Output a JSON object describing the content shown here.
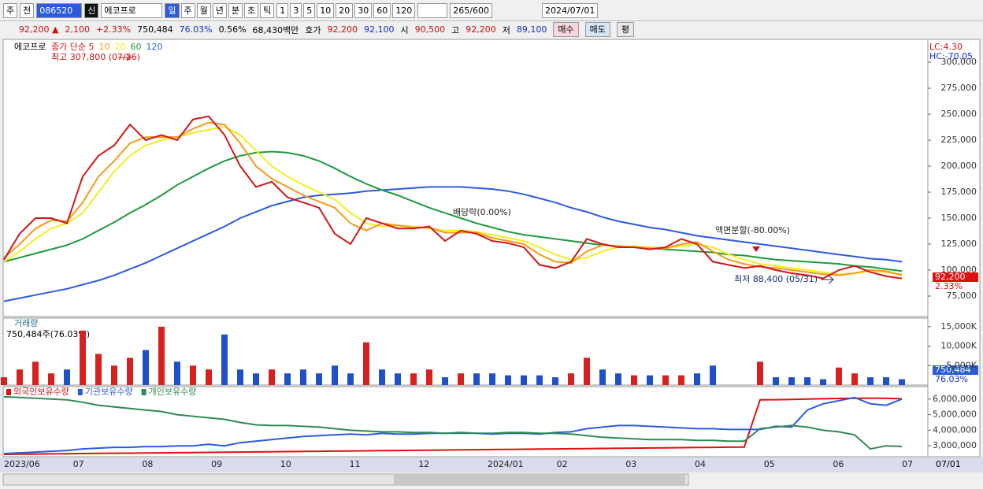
{
  "toolbar": {
    "market": "주",
    "prev": "전",
    "code": "086520",
    "credit": "신",
    "name": "에코프로",
    "periods": [
      "일",
      "주",
      "월",
      "년",
      "분",
      "초",
      "틱"
    ],
    "intervals": [
      "1",
      "3",
      "5",
      "10",
      "20",
      "30",
      "60",
      "120"
    ],
    "count": "265/600",
    "date": "2024/07/01"
  },
  "quote": {
    "price": "92,200 ▲",
    "change": "2,100",
    "rate": "+2.33%",
    "volume": "750,484",
    "vol_ratio": "76.03%",
    "turnover": "0.56%",
    "amount": "68,430백만",
    "ask_label": "호가",
    "ask": "92,200",
    "bid": "92,100",
    "open_label": "시",
    "open": "90,500",
    "high_label": "고",
    "high": "92,200",
    "low_label": "저",
    "low": "89,100",
    "buy": "매수",
    "sell": "매도",
    "avg": "평"
  },
  "chart_data": [
    {
      "type": "line",
      "title": "에코프로",
      "ylim": [
        55300,
        322000
      ],
      "yticks": [
        {
          "value": 75000,
          "label": "75,000"
        },
        {
          "value": 100000,
          "label": "100,000"
        },
        {
          "value": 125000,
          "label": "125,000"
        },
        {
          "value": 150000,
          "label": "150,000"
        },
        {
          "value": 175000,
          "label": "175,000"
        },
        {
          "value": 200000,
          "label": "200,000"
        },
        {
          "value": 225000,
          "label": "225,000"
        },
        {
          "value": 250000,
          "label": "250,000"
        },
        {
          "value": 275000,
          "label": "275,000"
        },
        {
          "value": 300000,
          "label": "300,000"
        }
      ],
      "series": [
        {
          "name": "120",
          "color": "#2c5be0",
          "values": [
            70000,
            73000,
            76000,
            79000,
            82000,
            86000,
            90000,
            95000,
            101000,
            107000,
            114000,
            121000,
            128000,
            135000,
            142000,
            150000,
            156000,
            162000,
            166000,
            170000,
            172000,
            173000,
            174000,
            176000,
            177000,
            178000,
            179000,
            180000,
            180000,
            180000,
            179000,
            178000,
            176000,
            173000,
            169000,
            165000,
            160000,
            156000,
            151000,
            147000,
            144000,
            141000,
            139000,
            136000,
            133000,
            131000,
            129000,
            127000,
            125000,
            123000,
            121000,
            119000,
            117000,
            115000,
            113000,
            111000,
            110000,
            108000
          ]
        },
        {
          "name": "60",
          "color": "#1e9a3a",
          "values": [
            108000,
            112000,
            116000,
            120000,
            124000,
            130000,
            138000,
            146000,
            155000,
            163000,
            172000,
            182000,
            190000,
            198000,
            205000,
            210000,
            213000,
            214000,
            213000,
            210000,
            205000,
            198000,
            190000,
            183000,
            177000,
            172000,
            166000,
            160000,
            155000,
            150000,
            145000,
            141000,
            137000,
            134000,
            132000,
            130000,
            128000,
            126000,
            124000,
            123000,
            122000,
            121000,
            120000,
            119000,
            118000,
            117000,
            115000,
            114000,
            112000,
            110000,
            109000,
            108000,
            107000,
            106000,
            104000,
            103000,
            101000,
            99000
          ]
        },
        {
          "name": "20",
          "color": "#f2ee20",
          "values": [
            108000,
            118000,
            130000,
            140000,
            145000,
            155000,
            175000,
            195000,
            210000,
            220000,
            225000,
            228000,
            232000,
            235000,
            238000,
            230000,
            215000,
            200000,
            190000,
            182000,
            175000,
            168000,
            155000,
            145000,
            142000,
            143000,
            142000,
            140000,
            138000,
            138000,
            137000,
            134000,
            131000,
            128000,
            122000,
            115000,
            110000,
            112000,
            118000,
            122000,
            123000,
            122000,
            121000,
            123000,
            125000,
            122000,
            115000,
            110000,
            106000,
            104000,
            102000,
            100000,
            98000,
            96000,
            97000,
            99000,
            98000,
            96000
          ]
        },
        {
          "name": "10",
          "color": "#f59a1a",
          "values": [
            112000,
            125000,
            140000,
            148000,
            147000,
            165000,
            190000,
            205000,
            222000,
            228000,
            228000,
            228000,
            236000,
            242000,
            240000,
            222000,
            200000,
            188000,
            180000,
            172000,
            166000,
            160000,
            145000,
            138000,
            145000,
            143000,
            141000,
            141000,
            136000,
            136000,
            136000,
            131000,
            128000,
            125000,
            115000,
            108000,
            107000,
            118000,
            124000,
            123000,
            122000,
            121000,
            121000,
            125000,
            127000,
            118000,
            110000,
            106000,
            103000,
            102000,
            100000,
            98000,
            96000,
            95000,
            97000,
            100000,
            99000,
            95000
          ]
        },
        {
          "name": "종가 단순 5",
          "color": "#d01818",
          "values": [
            110000,
            135000,
            150000,
            150000,
            145000,
            190000,
            210000,
            220000,
            240000,
            225000,
            230000,
            225000,
            245000,
            248000,
            230000,
            200000,
            180000,
            185000,
            170000,
            165000,
            160000,
            135000,
            125000,
            150000,
            145000,
            140000,
            140000,
            142000,
            128000,
            138000,
            135000,
            128000,
            126000,
            122000,
            105000,
            102000,
            108000,
            130000,
            125000,
            122000,
            122000,
            120000,
            122000,
            130000,
            125000,
            108000,
            105000,
            102000,
            104000,
            100000,
            97000,
            95000,
            92000,
            100000,
            104000,
            98000,
            94000,
            92000
          ]
        }
      ],
      "annotations": [
        "최고 307,800 (07/26)",
        "배당락(0.00%)",
        "액면분할(-80.00%)",
        "최저 88,400 (05/31)"
      ],
      "right_labels": {
        "lc": "LC:4.30",
        "hc": "HC:-70.05",
        "price": "92,200",
        "rate": "2.33%"
      }
    },
    {
      "type": "bar",
      "title": "거래량",
      "subtitle": "750,484주(76.03%)",
      "ylim": [
        0,
        17200
      ],
      "yticks": [
        {
          "value": 5000,
          "label": "5,000K"
        },
        {
          "value": 10000,
          "label": "10,000K"
        },
        {
          "value": 15000,
          "label": "15,000K"
        }
      ],
      "values": [
        2000,
        4000,
        6000,
        3000,
        4000,
        14000,
        8000,
        5000,
        7000,
        9000,
        15000,
        6000,
        5000,
        4000,
        13000,
        4000,
        3000,
        4000,
        3000,
        4000,
        3000,
        5000,
        3000,
        11000,
        4000,
        3000,
        3000,
        4000,
        2000,
        3000,
        3000,
        3000,
        2500,
        2500,
        2500,
        2000,
        3000,
        7000,
        4000,
        3000,
        2500,
        2500,
        2500,
        2500,
        3000,
        5000,
        null,
        null,
        6000,
        2000,
        2000,
        2000,
        1500,
        4500,
        3000,
        2000,
        2000,
        1500
      ],
      "right_labels": {
        "value": "750,484",
        "rate": "76.03%"
      }
    },
    {
      "type": "line",
      "ylim": [
        2300000,
        6800000
      ],
      "yticks": [
        {
          "value": 3000000,
          "label": "3,000,000"
        },
        {
          "value": 4000000,
          "label": "4,000,000"
        },
        {
          "value": 5000000,
          "label": "5,000,000"
        },
        {
          "value": 6000000,
          "label": "6,000,000"
        }
      ],
      "series": [
        {
          "name": "외국인보유수량",
          "color": "#e01010",
          "values": [
            2450000,
            2460000,
            2470000,
            2480000,
            2490000,
            2500000,
            2510000,
            2520000,
            2530000,
            2540000,
            2550000,
            2560000,
            2570000,
            2580000,
            2590000,
            2600000,
            2610000,
            2620000,
            2630000,
            2640000,
            2650000,
            2660000,
            2670000,
            2680000,
            2690000,
            2700000,
            2710000,
            2720000,
            2730000,
            2740000,
            2750000,
            2760000,
            2770000,
            2780000,
            2790000,
            2800000,
            2810000,
            2820000,
            2830000,
            2840000,
            2850000,
            2860000,
            2870000,
            2880000,
            2890000,
            2900000,
            2910000,
            2920000,
            5950000,
            5960000,
            5980000,
            6000000,
            6020000,
            6040000,
            6050000,
            6050000,
            6050000,
            6020000
          ]
        },
        {
          "name": "기관보유수량",
          "color": "#2c5be0",
          "values": [
            2500000,
            2550000,
            2600000,
            2650000,
            2700000,
            2800000,
            2850000,
            2900000,
            2900000,
            2950000,
            2950000,
            3000000,
            3000000,
            3100000,
            3000000,
            3200000,
            3300000,
            3400000,
            3500000,
            3600000,
            3650000,
            3700000,
            3750000,
            3700000,
            3800000,
            3750000,
            3750000,
            3800000,
            3800000,
            3850000,
            3800000,
            3750000,
            3800000,
            3800000,
            3750000,
            3850000,
            3900000,
            4100000,
            4200000,
            4300000,
            4300000,
            4250000,
            4200000,
            4150000,
            4100000,
            4100000,
            4050000,
            4050000,
            4050000,
            4250000,
            4200000,
            5300000,
            5700000,
            5900000,
            6100000,
            5700000,
            5600000,
            6000000
          ]
        },
        {
          "name": "개인보유수량",
          "color": "#2f8a55",
          "values": [
            6150000,
            6100000,
            6050000,
            6000000,
            5950000,
            5800000,
            5600000,
            5500000,
            5400000,
            5300000,
            5200000,
            5000000,
            4900000,
            4800000,
            4700000,
            4500000,
            4350000,
            4300000,
            4300000,
            4250000,
            4200000,
            4100000,
            4000000,
            3950000,
            3900000,
            3900000,
            3850000,
            3850000,
            3800000,
            3800000,
            3800000,
            3800000,
            3850000,
            3850000,
            3800000,
            3800000,
            3750000,
            3650000,
            3550000,
            3500000,
            3450000,
            3400000,
            3400000,
            3400000,
            3350000,
            3350000,
            3300000,
            3300000,
            4100000,
            4200000,
            4300000,
            4200000,
            4000000,
            3900000,
            3700000,
            2800000,
            3000000,
            2950000
          ]
        }
      ]
    }
  ],
  "x_axis": {
    "labels": [
      "2023/06",
      "07",
      "08",
      "09",
      "10",
      "11",
      "12",
      "2024/01",
      "02",
      "03",
      "04",
      "05",
      "06",
      "07"
    ],
    "end": "07/01"
  }
}
